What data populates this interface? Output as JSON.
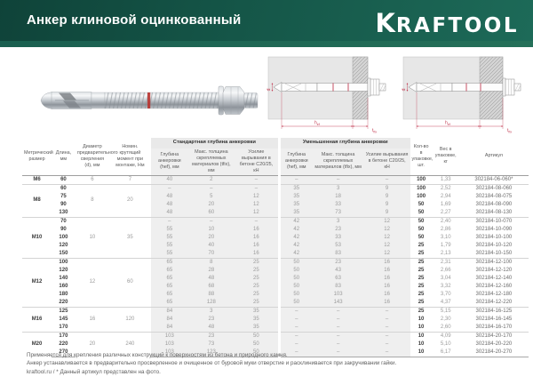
{
  "page": {
    "title": "Анкер клиновой оцинкованный",
    "brand_k": "K",
    "brand_rest": "RAFTOOL"
  },
  "colors": {
    "header_green": "#155648",
    "accent_red": "#c23b52",
    "shade_gray": "#efefef"
  },
  "diagram": {
    "d_label": "d",
    "hef_main": "h",
    "hef_sub": "ef",
    "tfix_main": "t",
    "tfix_sub": "fix"
  },
  "table": {
    "columns": {
      "size": "Метрический размер",
      "length": "Длина, мм",
      "drill": "Диаметр предварительного сверления (d), мм",
      "torque": "Номин. крутящий момент при монтаже, Нм",
      "group_std": "Стандартная глубина анкеровки",
      "group_red": "Уменьшенная глубина анкеровки",
      "depth": "Глубина анкеровки (hef), мм",
      "tfix": "Макс. толщина скрепляемых материалов (tfix), мм",
      "force": "Усилие вырывания в бетоне С20/25, кН",
      "qty": "Кол-во в упаковке, шт.",
      "weight": "Вес в упаковке, кг",
      "article": "Артикул"
    },
    "groups": [
      {
        "size": "M6",
        "drill": "6",
        "torque": "7",
        "rows": [
          {
            "len": "60",
            "std": [
              "40",
              "2",
              "–"
            ],
            "red": [
              "–",
              "–",
              "–"
            ],
            "qty": "100",
            "weight": "1,33",
            "article": "302184-06-060*"
          }
        ]
      },
      {
        "size": "M8",
        "drill": "8",
        "torque": "20",
        "rows": [
          {
            "len": "60",
            "std": [
              "–",
              "–",
              "–"
            ],
            "red": [
              "35",
              "3",
              "9"
            ],
            "qty": "100",
            "weight": "2,52",
            "article": "302184-08-060"
          },
          {
            "len": "75",
            "std": [
              "48",
              "5",
              "12"
            ],
            "red": [
              "35",
              "18",
              "9"
            ],
            "qty": "100",
            "weight": "2,94",
            "article": "302184-08-075"
          },
          {
            "len": "90",
            "std": [
              "48",
              "20",
              "12"
            ],
            "red": [
              "35",
              "33",
              "9"
            ],
            "qty": "50",
            "weight": "1,69",
            "article": "302184-08-090"
          },
          {
            "len": "130",
            "std": [
              "48",
              "60",
              "12"
            ],
            "red": [
              "35",
              "73",
              "9"
            ],
            "qty": "50",
            "weight": "2,27",
            "article": "302184-08-130"
          }
        ]
      },
      {
        "size": "M10",
        "drill": "10",
        "torque": "35",
        "rows": [
          {
            "len": "70",
            "std": [
              "–",
              "–",
              "–"
            ],
            "red": [
              "42",
              "3",
              "12"
            ],
            "qty": "50",
            "weight": "2,40",
            "article": "302184-10-070"
          },
          {
            "len": "90",
            "std": [
              "55",
              "10",
              "16"
            ],
            "red": [
              "42",
              "23",
              "12"
            ],
            "qty": "50",
            "weight": "2,86",
            "article": "302184-10-090"
          },
          {
            "len": "100",
            "std": [
              "55",
              "20",
              "16"
            ],
            "red": [
              "42",
              "33",
              "12"
            ],
            "qty": "50",
            "weight": "3,10",
            "article": "302184-10-100"
          },
          {
            "len": "120",
            "std": [
              "55",
              "40",
              "16"
            ],
            "red": [
              "42",
              "53",
              "12"
            ],
            "qty": "25",
            "weight": "1,79",
            "article": "302184-10-120"
          },
          {
            "len": "150",
            "std": [
              "55",
              "70",
              "16"
            ],
            "red": [
              "42",
              "83",
              "12"
            ],
            "qty": "25",
            "weight": "2,13",
            "article": "302184-10-150"
          }
        ]
      },
      {
        "size": "M12",
        "drill": "12",
        "torque": "60",
        "rows": [
          {
            "len": "100",
            "std": [
              "65",
              "8",
              "25"
            ],
            "red": [
              "50",
              "23",
              "16"
            ],
            "qty": "25",
            "weight": "2,31",
            "article": "302184-12-100"
          },
          {
            "len": "120",
            "std": [
              "65",
              "28",
              "25"
            ],
            "red": [
              "50",
              "43",
              "16"
            ],
            "qty": "25",
            "weight": "2,66",
            "article": "302184-12-120"
          },
          {
            "len": "140",
            "std": [
              "65",
              "48",
              "25"
            ],
            "red": [
              "50",
              "63",
              "16"
            ],
            "qty": "25",
            "weight": "3,04",
            "article": "302184-12-140"
          },
          {
            "len": "160",
            "std": [
              "65",
              "68",
              "25"
            ],
            "red": [
              "50",
              "83",
              "16"
            ],
            "qty": "25",
            "weight": "3,32",
            "article": "302184-12-160"
          },
          {
            "len": "180",
            "std": [
              "65",
              "88",
              "25"
            ],
            "red": [
              "50",
              "103",
              "16"
            ],
            "qty": "25",
            "weight": "3,70",
            "article": "302184-12-180"
          },
          {
            "len": "220",
            "std": [
              "65",
              "128",
              "25"
            ],
            "red": [
              "50",
              "143",
              "16"
            ],
            "qty": "25",
            "weight": "4,37",
            "article": "302184-12-220"
          }
        ]
      },
      {
        "size": "M16",
        "drill": "16",
        "torque": "120",
        "rows": [
          {
            "len": "125",
            "std": [
              "84",
              "3",
              "35"
            ],
            "red": [
              "–",
              "–",
              "–"
            ],
            "qty": "25",
            "weight": "5,15",
            "article": "302184-16-125"
          },
          {
            "len": "145",
            "std": [
              "84",
              "23",
              "35"
            ],
            "red": [
              "–",
              "–",
              "–"
            ],
            "qty": "10",
            "weight": "2,30",
            "article": "302184-16-145"
          },
          {
            "len": "170",
            "std": [
              "84",
              "48",
              "35"
            ],
            "red": [
              "–",
              "–",
              "–"
            ],
            "qty": "10",
            "weight": "2,60",
            "article": "302184-16-170"
          }
        ]
      },
      {
        "size": "M20",
        "drill": "20",
        "torque": "240",
        "rows": [
          {
            "len": "170",
            "std": [
              "103",
              "23",
              "50"
            ],
            "red": [
              "–",
              "–",
              "–"
            ],
            "qty": "10",
            "weight": "4,09",
            "article": "302184-20-170"
          },
          {
            "len": "220",
            "std": [
              "103",
              "73",
              "50"
            ],
            "red": [
              "–",
              "–",
              "–"
            ],
            "qty": "10",
            "weight": "5,10",
            "article": "302184-20-220"
          },
          {
            "len": "270",
            "std": [
              "103",
              "123",
              "50"
            ],
            "red": [
              "–",
              "–",
              "–"
            ],
            "qty": "10",
            "weight": "6,17",
            "article": "302184-20-270"
          }
        ]
      }
    ]
  },
  "footnotes": [
    "Применяется для крепления различных конструкций к поверхностям из бетона и природного камня.",
    "Анкер устанавливается в предварительно просверленное и очищенное от буровой муки отверстие и расклинивается при закручивании гайки.",
    "kraftool.ru   /   * Данный артикул представлен на фото."
  ]
}
